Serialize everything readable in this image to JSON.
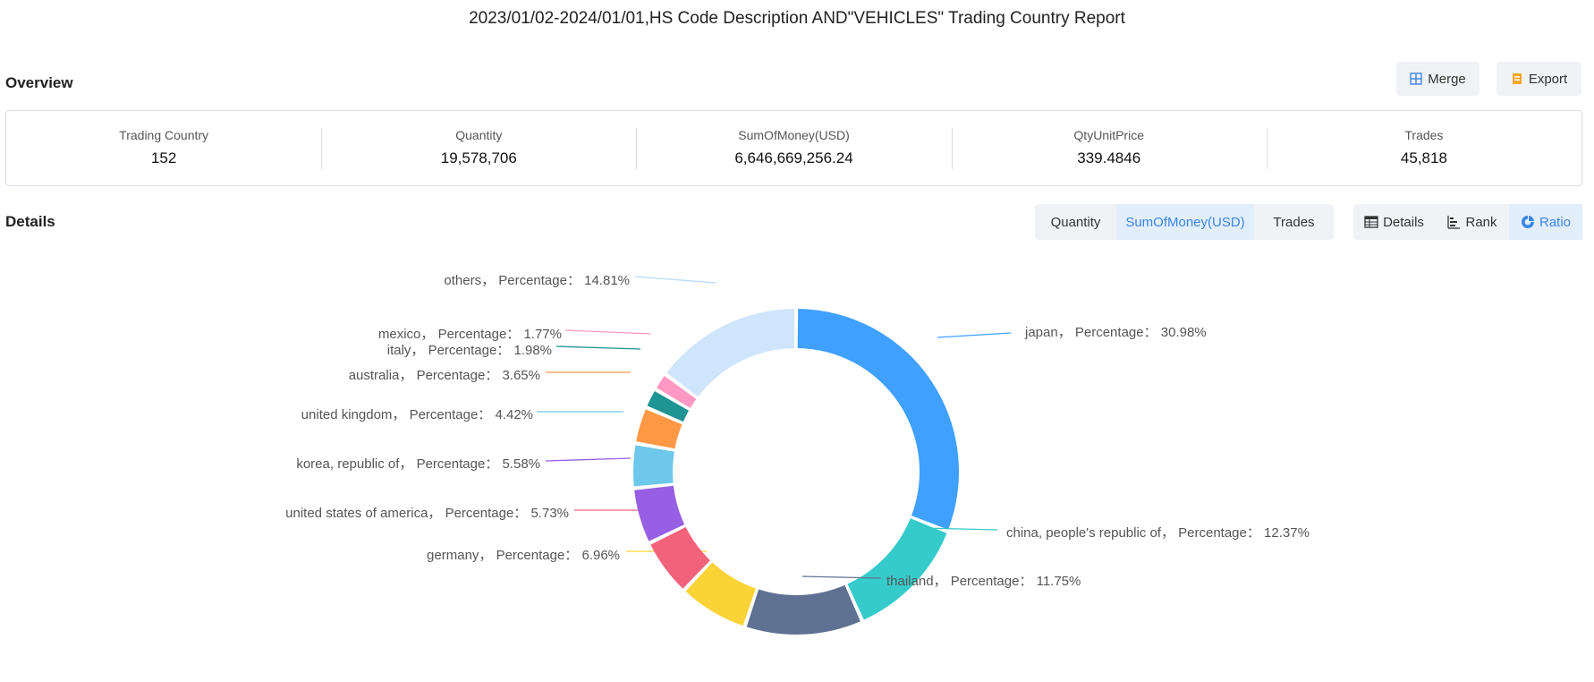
{
  "report": {
    "title": "2023/01/02-2024/01/01,HS Code Description AND\"VEHICLES\" Trading Country Report"
  },
  "overview": {
    "title": "Overview",
    "merge_label": "Merge",
    "export_label": "Export",
    "stats": [
      {
        "label": "Trading Country",
        "value": "152"
      },
      {
        "label": "Quantity",
        "value": "19,578,706"
      },
      {
        "label": "SumOfMoney(USD)",
        "value": "6,646,669,256.24"
      },
      {
        "label": "QtyUnitPrice",
        "value": "339.4846"
      },
      {
        "label": "Trades",
        "value": "45,818"
      }
    ]
  },
  "details": {
    "title": "Details",
    "metric_tabs": [
      "Quantity",
      "SumOfMoney(USD)",
      "Trades"
    ],
    "active_metric": "SumOfMoney(USD)",
    "view_tabs": [
      "Details",
      "Rank",
      "Ratio"
    ],
    "active_view": "Ratio"
  },
  "icons": {
    "merge": "merge-icon",
    "export": "export-icon",
    "details": "table-icon",
    "rank": "bar-rank-icon",
    "ratio": "donut-icon"
  },
  "colors": {
    "accent": "#3a86e6",
    "active_bg": "#e3eefc"
  },
  "chart_data": {
    "type": "pie",
    "style": "donut",
    "label_prefix": "Percentage：",
    "slices": [
      {
        "name": "japan",
        "value": 30.98,
        "color": "#3fa0ff"
      },
      {
        "name": "china, people's republic of",
        "value": 12.37,
        "color": "#36cbcb"
      },
      {
        "name": "thailand",
        "value": 11.75,
        "color": "#5f7192"
      },
      {
        "name": "germany",
        "value": 6.96,
        "color": "#fad337"
      },
      {
        "name": "united states of america",
        "value": 5.73,
        "color": "#f2637b"
      },
      {
        "name": "korea, republic of",
        "value": 5.58,
        "color": "#975fe4"
      },
      {
        "name": "united kingdom",
        "value": 4.42,
        "color": "#6dc8ec"
      },
      {
        "name": "australia",
        "value": 3.65,
        "color": "#ff9845"
      },
      {
        "name": "italy",
        "value": 1.98,
        "color": "#1e9493"
      },
      {
        "name": "mexico",
        "value": 1.77,
        "color": "#ff99c3"
      },
      {
        "name": "others",
        "value": 14.81,
        "color": "#cfe5fc"
      }
    ]
  }
}
